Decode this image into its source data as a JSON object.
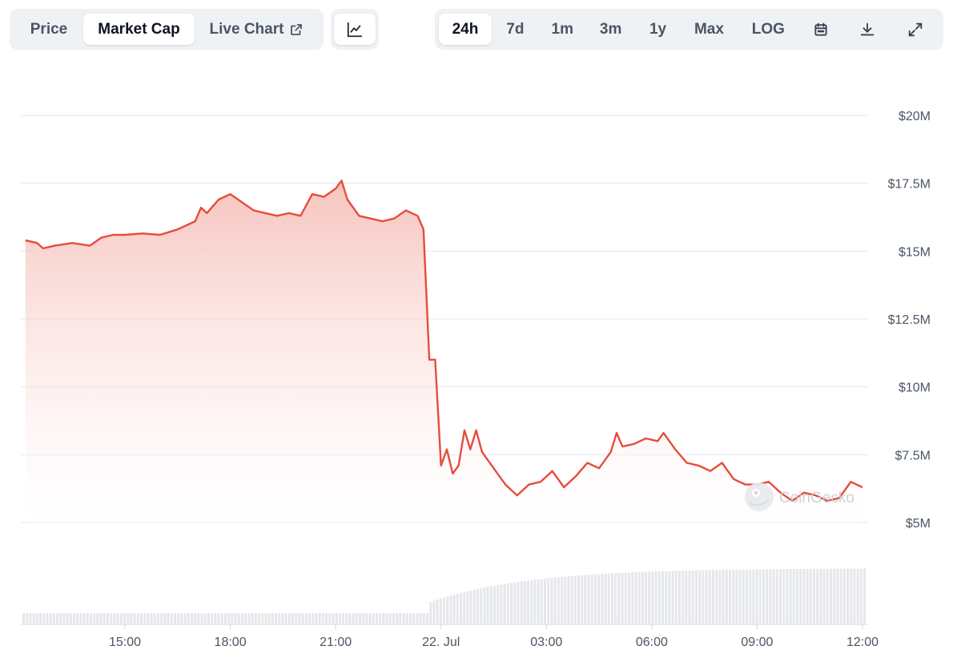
{
  "toolbar": {
    "type_tabs": [
      {
        "label": "Price",
        "active": false
      },
      {
        "label": "Market Cap",
        "active": true
      },
      {
        "label": "Live Chart",
        "active": false
      }
    ],
    "style_icon": "line-chart-icon",
    "range_tabs": [
      {
        "label": "24h",
        "active": true
      },
      {
        "label": "7d",
        "active": false
      },
      {
        "label": "1m",
        "active": false
      },
      {
        "label": "3m",
        "active": false
      },
      {
        "label": "1y",
        "active": false
      },
      {
        "label": "Max",
        "active": false
      },
      {
        "label": "LOG",
        "active": false
      }
    ],
    "icons": [
      "calendar-icon",
      "download-icon",
      "expand-icon"
    ]
  },
  "watermark": "CoinGecko",
  "colors": {
    "line": "#e74c3c",
    "fill_top": "#f6bdb6",
    "volume": "#e5e7eb",
    "grid": "#e5e7eb",
    "active_tab_bg": "#ffffff",
    "toolbar_bg": "#eff2f5"
  },
  "chart_data": {
    "type": "area",
    "y_unit": "USD",
    "ylim": [
      5000000,
      20000000
    ],
    "y_ticks": [
      5000000,
      7500000,
      10000000,
      12500000,
      15000000,
      17500000,
      20000000
    ],
    "y_tick_labels": [
      "$5M",
      "$7.5M",
      "$10M",
      "$12.5M",
      "$15M",
      "$17.5M",
      "$20M"
    ],
    "x_range": [
      "21 Jul 12:10",
      "22 Jul 12:00"
    ],
    "x_ticks": [
      "21 Jul 15:00",
      "21 Jul 18:00",
      "21 Jul 21:00",
      "22 Jul 00:00",
      "22 Jul 03:00",
      "22 Jul 06:00",
      "22 Jul 09:00",
      "22 Jul 12:00"
    ],
    "x_tick_labels": [
      "15:00",
      "18:00",
      "21:00",
      "22. Jul",
      "03:00",
      "06:00",
      "09:00",
      "12:00"
    ],
    "grid": true,
    "series": [
      {
        "kind": "market_cap",
        "points": [
          [
            "21 Jul 12:10",
            15400000
          ],
          [
            "21 Jul 12:30",
            15300000
          ],
          [
            "21 Jul 12:40",
            15100000
          ],
          [
            "21 Jul 13:00",
            15200000
          ],
          [
            "21 Jul 13:30",
            15300000
          ],
          [
            "21 Jul 14:00",
            15200000
          ],
          [
            "21 Jul 14:20",
            15500000
          ],
          [
            "21 Jul 14:40",
            15600000
          ],
          [
            "21 Jul 15:00",
            15600000
          ],
          [
            "21 Jul 15:30",
            15650000
          ],
          [
            "21 Jul 16:00",
            15600000
          ],
          [
            "21 Jul 16:30",
            15800000
          ],
          [
            "21 Jul 17:00",
            16100000
          ],
          [
            "21 Jul 17:10",
            16600000
          ],
          [
            "21 Jul 17:20",
            16400000
          ],
          [
            "21 Jul 17:40",
            16900000
          ],
          [
            "21 Jul 18:00",
            17100000
          ],
          [
            "21 Jul 18:20",
            16800000
          ],
          [
            "21 Jul 18:40",
            16500000
          ],
          [
            "21 Jul 19:00",
            16400000
          ],
          [
            "21 Jul 19:20",
            16300000
          ],
          [
            "21 Jul 19:40",
            16400000
          ],
          [
            "21 Jul 20:00",
            16300000
          ],
          [
            "21 Jul 20:20",
            17100000
          ],
          [
            "21 Jul 20:40",
            17000000
          ],
          [
            "21 Jul 21:00",
            17300000
          ],
          [
            "21 Jul 21:10",
            17600000
          ],
          [
            "21 Jul 21:20",
            16900000
          ],
          [
            "21 Jul 21:40",
            16300000
          ],
          [
            "21 Jul 22:00",
            16200000
          ],
          [
            "21 Jul 22:20",
            16100000
          ],
          [
            "21 Jul 22:40",
            16200000
          ],
          [
            "21 Jul 23:00",
            16500000
          ],
          [
            "21 Jul 23:20",
            16300000
          ],
          [
            "21 Jul 23:30",
            15800000
          ],
          [
            "21 Jul 23:40",
            11000000
          ],
          [
            "21 Jul 23:50",
            11000000
          ],
          [
            "22 Jul 00:00",
            7100000
          ],
          [
            "22 Jul 00:10",
            7700000
          ],
          [
            "22 Jul 00:20",
            6800000
          ],
          [
            "22 Jul 00:30",
            7100000
          ],
          [
            "22 Jul 00:40",
            8400000
          ],
          [
            "22 Jul 00:50",
            7700000
          ],
          [
            "22 Jul 01:00",
            8400000
          ],
          [
            "22 Jul 01:10",
            7600000
          ],
          [
            "22 Jul 01:30",
            7000000
          ],
          [
            "22 Jul 01:50",
            6400000
          ],
          [
            "22 Jul 02:10",
            6000000
          ],
          [
            "22 Jul 02:30",
            6400000
          ],
          [
            "22 Jul 02:50",
            6500000
          ],
          [
            "22 Jul 03:10",
            6900000
          ],
          [
            "22 Jul 03:30",
            6300000
          ],
          [
            "22 Jul 03:50",
            6700000
          ],
          [
            "22 Jul 04:10",
            7200000
          ],
          [
            "22 Jul 04:30",
            7000000
          ],
          [
            "22 Jul 04:50",
            7600000
          ],
          [
            "22 Jul 05:00",
            8300000
          ],
          [
            "22 Jul 05:10",
            7800000
          ],
          [
            "22 Jul 05:30",
            7900000
          ],
          [
            "22 Jul 05:50",
            8100000
          ],
          [
            "22 Jul 06:10",
            8000000
          ],
          [
            "22 Jul 06:20",
            8300000
          ],
          [
            "22 Jul 06:40",
            7700000
          ],
          [
            "22 Jul 07:00",
            7200000
          ],
          [
            "22 Jul 07:20",
            7100000
          ],
          [
            "22 Jul 07:40",
            6900000
          ],
          [
            "22 Jul 08:00",
            7200000
          ],
          [
            "22 Jul 08:20",
            6600000
          ],
          [
            "22 Jul 08:40",
            6400000
          ],
          [
            "22 Jul 09:00",
            6400000
          ],
          [
            "22 Jul 09:20",
            6500000
          ],
          [
            "22 Jul 09:40",
            6100000
          ],
          [
            "22 Jul 10:00",
            5800000
          ],
          [
            "22 Jul 10:20",
            6100000
          ],
          [
            "22 Jul 10:40",
            6000000
          ],
          [
            "22 Jul 11:00",
            5800000
          ],
          [
            "22 Jul 11:20",
            5900000
          ],
          [
            "22 Jul 11:40",
            6500000
          ],
          [
            "22 Jul 12:00",
            6300000
          ]
        ]
      }
    ],
    "volume": "bars along the bottom; low until ~21 Jul 23:40, then rising steeply and levelling off"
  }
}
